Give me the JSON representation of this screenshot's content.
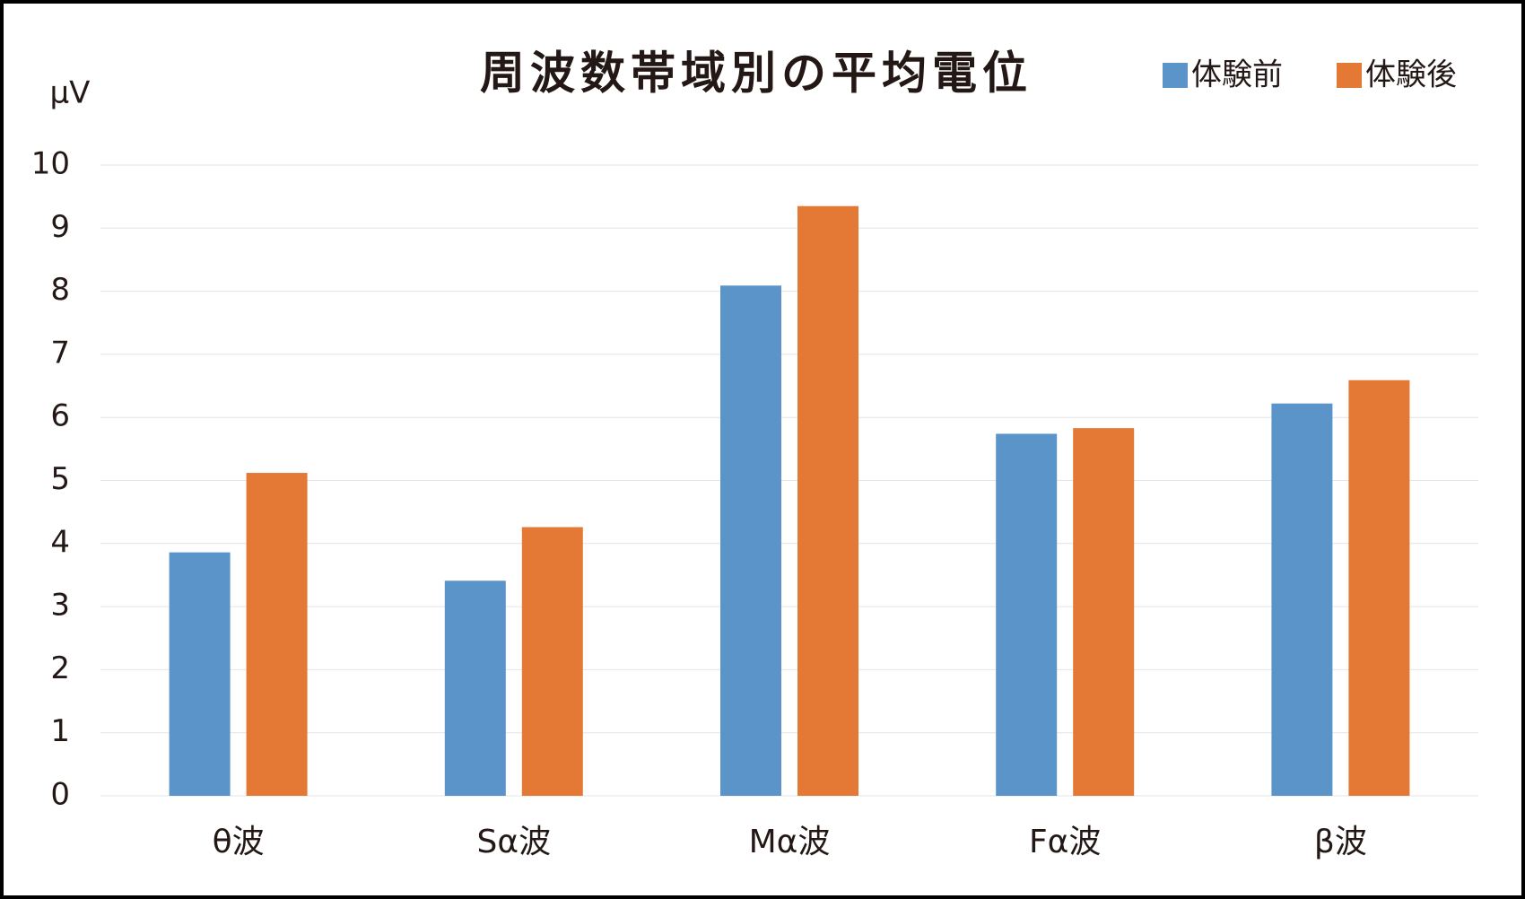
{
  "chart_data": {
    "type": "bar",
    "title": "周波数帯域別の平均電位",
    "y_axis_label": "μV",
    "categories": [
      "θ波",
      "Sα波",
      "Mα波",
      "Fα波",
      "β波"
    ],
    "series": [
      {
        "name": "体験前",
        "color": "#5b94c9",
        "values": [
          3.86,
          3.41,
          8.09,
          5.74,
          6.22
        ]
      },
      {
        "name": "体験後",
        "color": "#e37935",
        "values": [
          5.12,
          4.26,
          9.35,
          5.83,
          6.59
        ]
      }
    ],
    "ylim": [
      0,
      10
    ],
    "yticks": [
      0,
      1,
      2,
      3,
      4,
      5,
      6,
      7,
      8,
      9,
      10
    ],
    "grid": true,
    "legend": "top-right"
  }
}
